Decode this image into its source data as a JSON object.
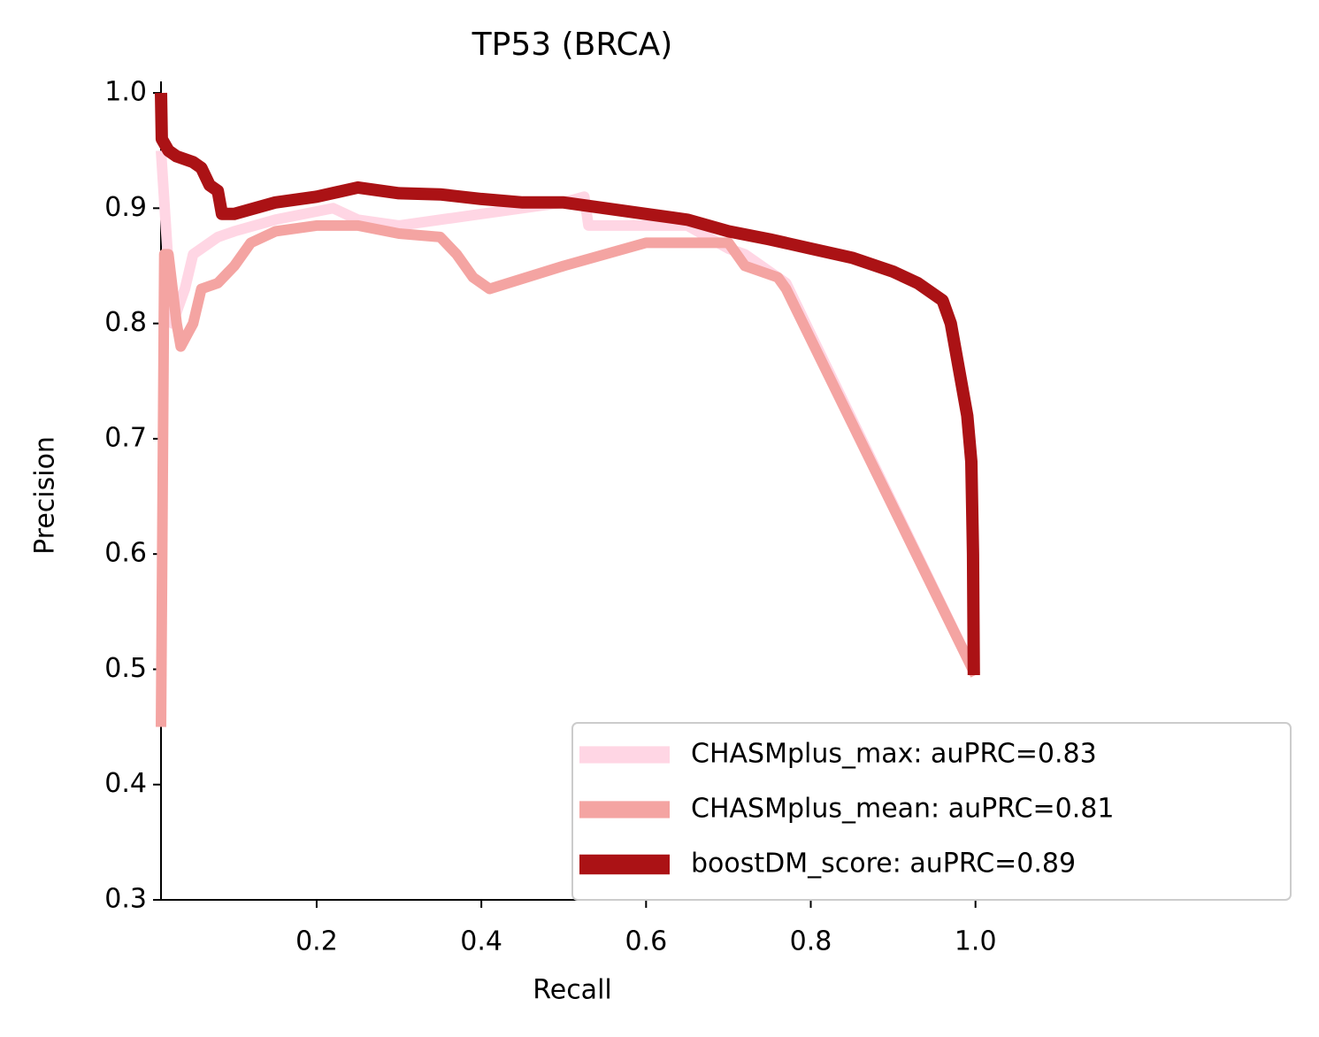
{
  "chart_data": {
    "type": "line",
    "title": "TP53 (BRCA)",
    "x_label": "Recall",
    "y_label": "Precision",
    "xlim": [
      0.011,
      1.01
    ],
    "ylim": [
      0.3,
      1.01
    ],
    "xticks": [
      0.2,
      0.4,
      0.6,
      0.8,
      {
        "value": 1,
        "label": "1.0"
      }
    ],
    "yticks": [
      0.3,
      0.4,
      0.5,
      0.6,
      0.7,
      0.8,
      0.9,
      {
        "value": 1,
        "label": "1.0"
      }
    ],
    "grid": false,
    "legend": "lower right",
    "series": [
      {
        "name": "CHASMplus_max: auPRC=0.83",
        "color": "#ffd6e4",
        "width": 12,
        "x": [
          0.011,
          0.02,
          0.025,
          0.04,
          0.05,
          0.08,
          0.1,
          0.15,
          0.22,
          0.25,
          0.3,
          0.4,
          0.5,
          0.525,
          0.53,
          0.6,
          0.65,
          0.7,
          0.72,
          0.75,
          0.77,
          1.0
        ],
        "values": [
          0.95,
          0.85,
          0.8,
          0.83,
          0.86,
          0.875,
          0.88,
          0.89,
          0.9,
          0.89,
          0.885,
          0.895,
          0.905,
          0.91,
          0.885,
          0.885,
          0.885,
          0.865,
          0.86,
          0.845,
          0.835,
          0.495
        ]
      },
      {
        "name": "CHASMplus_mean: auPRC=0.81",
        "color": "#f4a4a2",
        "width": 12,
        "x": [
          0.011,
          0.015,
          0.02,
          0.03,
          0.035,
          0.05,
          0.06,
          0.08,
          0.1,
          0.12,
          0.15,
          0.2,
          0.25,
          0.3,
          0.35,
          0.37,
          0.39,
          0.41,
          0.5,
          0.6,
          0.65,
          0.7,
          0.71,
          0.72,
          0.76,
          0.77,
          1.0
        ],
        "values": [
          0.45,
          0.86,
          0.86,
          0.8,
          0.78,
          0.8,
          0.83,
          0.835,
          0.85,
          0.87,
          0.88,
          0.885,
          0.885,
          0.878,
          0.875,
          0.86,
          0.84,
          0.83,
          0.85,
          0.87,
          0.87,
          0.87,
          0.86,
          0.85,
          0.84,
          0.83,
          0.495
        ]
      },
      {
        "name": "boostDM_score: auPRC=0.89",
        "color": "#ab1215",
        "width": 14,
        "x": [
          0.011,
          0.012,
          0.02,
          0.03,
          0.05,
          0.06,
          0.07,
          0.08,
          0.085,
          0.1,
          0.15,
          0.2,
          0.25,
          0.3,
          0.35,
          0.4,
          0.45,
          0.5,
          0.55,
          0.6,
          0.65,
          0.7,
          0.75,
          0.8,
          0.85,
          0.9,
          0.93,
          0.96,
          0.97,
          0.98,
          0.99,
          0.995,
          0.997,
          0.998
        ],
        "values": [
          1.0,
          0.96,
          0.95,
          0.945,
          0.94,
          0.935,
          0.92,
          0.915,
          0.895,
          0.895,
          0.905,
          0.91,
          0.918,
          0.913,
          0.912,
          0.908,
          0.905,
          0.905,
          0.9,
          0.895,
          0.89,
          0.88,
          0.873,
          0.865,
          0.857,
          0.845,
          0.835,
          0.82,
          0.8,
          0.76,
          0.72,
          0.68,
          0.6,
          0.495
        ]
      }
    ]
  }
}
